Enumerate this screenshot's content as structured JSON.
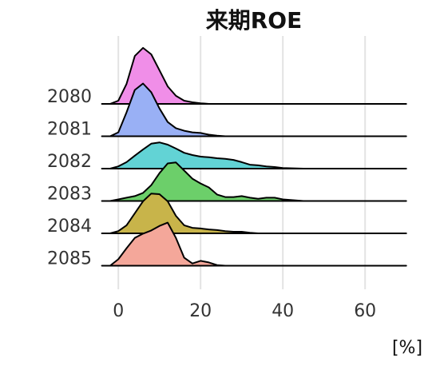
{
  "chart_data": {
    "type": "ridgeline",
    "title": "来期ROE",
    "x_label": "[%]",
    "x": [
      -4,
      -2,
      0,
      2,
      4,
      6,
      8,
      10,
      12,
      14,
      16,
      18,
      20,
      22,
      24,
      26,
      28,
      30,
      32,
      34,
      36,
      38,
      40,
      45,
      50,
      60,
      70
    ],
    "series": [
      {
        "name": "2080",
        "color": "#f08ee8",
        "values": [
          0,
          0,
          0.1,
          0.62,
          1.48,
          1.73,
          1.53,
          1.04,
          0.54,
          0.25,
          0.1,
          0.05,
          0.02,
          0,
          0,
          0,
          0,
          0,
          0,
          0,
          0,
          0,
          0,
          0,
          0,
          0,
          0
        ]
      },
      {
        "name": "2081",
        "color": "#99b0f5",
        "values": [
          0,
          0,
          0.12,
          0.74,
          1.43,
          1.63,
          1.36,
          0.86,
          0.44,
          0.25,
          0.17,
          0.12,
          0.1,
          0.05,
          0.02,
          0,
          0,
          0,
          0,
          0,
          0,
          0,
          0,
          0,
          0,
          0,
          0
        ]
      },
      {
        "name": "2082",
        "color": "#62d3d5",
        "values": [
          0,
          0,
          0.07,
          0.2,
          0.4,
          0.59,
          0.77,
          0.81,
          0.74,
          0.62,
          0.49,
          0.42,
          0.37,
          0.35,
          0.32,
          0.3,
          0.27,
          0.2,
          0.12,
          0.1,
          0.07,
          0.05,
          0.02,
          0,
          0,
          0,
          0
        ]
      },
      {
        "name": "2083",
        "color": "#6ccf6a",
        "values": [
          0,
          0,
          0.05,
          0.1,
          0.15,
          0.25,
          0.49,
          0.86,
          1.16,
          1.19,
          0.94,
          0.69,
          0.54,
          0.42,
          0.2,
          0.12,
          0.12,
          0.15,
          0.1,
          0.07,
          0.1,
          0.1,
          0.05,
          0,
          0,
          0,
          0
        ]
      },
      {
        "name": "2084",
        "color": "#c8b44a",
        "values": [
          0,
          0,
          0.07,
          0.25,
          0.62,
          0.99,
          1.23,
          1.21,
          0.99,
          0.54,
          0.25,
          0.17,
          0.15,
          0.12,
          0.1,
          0.07,
          0.05,
          0.05,
          0.02,
          0,
          0,
          0,
          0,
          0,
          0,
          0,
          0
        ]
      },
      {
        "name": "2085",
        "color": "#f4a79a",
        "values": [
          0,
          0,
          0.2,
          0.54,
          0.86,
          0.99,
          1.09,
          1.23,
          1.33,
          0.86,
          0.25,
          0.07,
          0.15,
          0.1,
          0.02,
          0,
          0,
          0,
          0,
          0,
          0,
          0,
          0,
          0,
          0,
          0,
          0
        ]
      }
    ],
    "xlim": [
      -8,
      72
    ],
    "xticks": [
      0,
      20,
      40,
      60
    ],
    "grid": true
  }
}
